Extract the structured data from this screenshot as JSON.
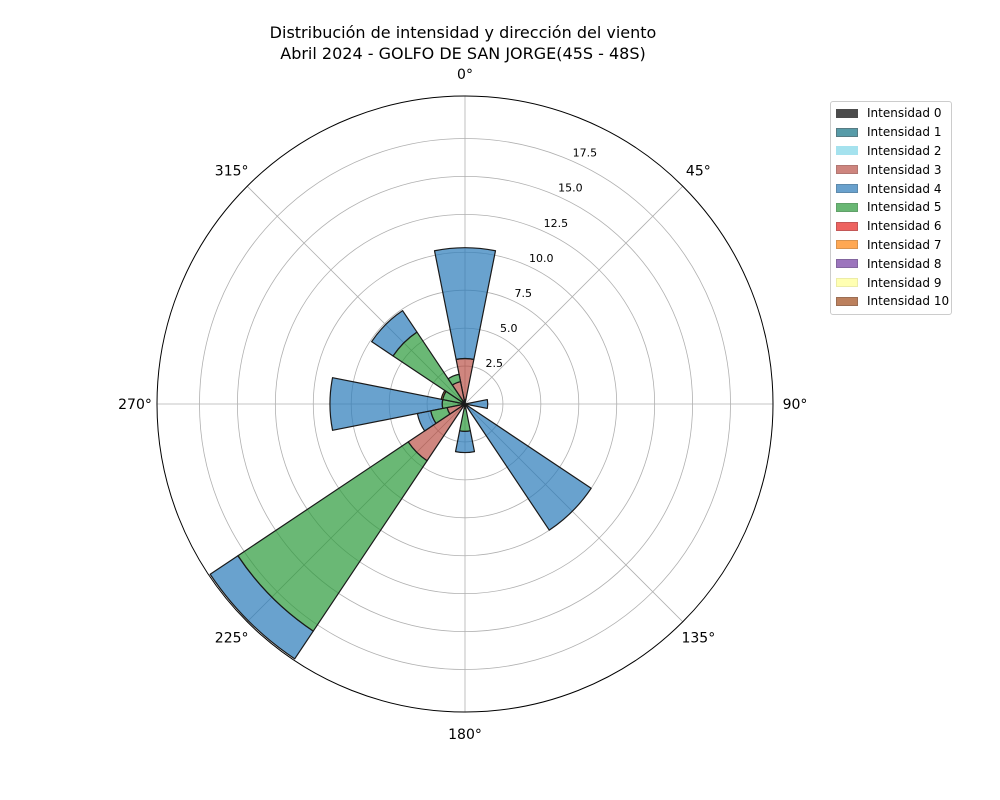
{
  "chart_data": {
    "type": "polar-bar",
    "title": "Distribución de intensidad y dirección del viento",
    "subtitle": "Abril 2024 - GOLFO DE SAN JORGE(45S - 48S)",
    "direction_labels": [
      "0°",
      "45°",
      "90°",
      "135°",
      "180°",
      "225°",
      "270°",
      "315°"
    ],
    "direction_label_angles": [
      0,
      45,
      90,
      135,
      180,
      225,
      270,
      315
    ],
    "radial_ticks": [
      2.5,
      5.0,
      7.5,
      10.0,
      12.5,
      15.0,
      17.5
    ],
    "radial_tick_labels": [
      "2.5",
      "5.0",
      "7.5",
      "10.0",
      "12.5",
      "15.0",
      "17.5"
    ],
    "radial_max": 20.3,
    "sector_width_deg": 22.5,
    "stacked": true,
    "grid": true,
    "legend_position": "upper right, outside plot",
    "series": [
      {
        "name": "Intensidad 0",
        "color": "#000000",
        "values": [
          {
            "direction": 0,
            "r0": 0,
            "r1": 0.3
          }
        ]
      },
      {
        "name": "Intensidad 1",
        "color": "#1f7a8c",
        "values": []
      },
      {
        "name": "Intensidad 2",
        "color": "#7fd6e8",
        "values": []
      },
      {
        "name": "Intensidad 3",
        "color": "#b5453a",
        "values": [
          {
            "direction": 0,
            "r0": 0.3,
            "r1": 3.0
          },
          {
            "direction": 337.5,
            "r0": 0,
            "r1": 1.5
          },
          {
            "direction": 225,
            "r0": 0,
            "r1": 4.5
          },
          {
            "direction": 247.5,
            "r0": 0,
            "r1": 1.2
          },
          {
            "direction": 180,
            "r0": 0,
            "r1": 0.3
          }
        ]
      },
      {
        "name": "Intensidad 4",
        "color": "#2a7ab9",
        "values": [
          {
            "direction": 0,
            "r0": 3.0,
            "r1": 10.3
          },
          {
            "direction": 90,
            "r0": 0,
            "r1": 1.5
          },
          {
            "direction": 135,
            "r0": 0,
            "r1": 10.0
          },
          {
            "direction": 180,
            "r0": 1.8,
            "r1": 3.2
          },
          {
            "direction": 225,
            "r0": 18.0,
            "r1": 20.2
          },
          {
            "direction": 247.5,
            "r0": 2.3,
            "r1": 3.2
          },
          {
            "direction": 270,
            "r0": 1.5,
            "r1": 8.9
          },
          {
            "direction": 315,
            "r0": 5.7,
            "r1": 7.4
          }
        ]
      },
      {
        "name": "Intensidad 5",
        "color": "#2b9a3a",
        "values": [
          {
            "direction": 180,
            "r0": 0.3,
            "r1": 1.8
          },
          {
            "direction": 225,
            "r0": 4.5,
            "r1": 18.0
          },
          {
            "direction": 247.5,
            "r0": 1.2,
            "r1": 2.3
          },
          {
            "direction": 270,
            "r0": 0,
            "r1": 1.5
          },
          {
            "direction": 292.5,
            "r0": 0,
            "r1": 1.5
          },
          {
            "direction": 315,
            "r0": 0,
            "r1": 5.7
          },
          {
            "direction": 337.5,
            "r0": 1.5,
            "r1": 2.0
          }
        ]
      },
      {
        "name": "Intensidad 6",
        "color": "#e8302c",
        "values": []
      },
      {
        "name": "Intensidad 7",
        "color": "#ff8b1c",
        "values": [
          {
            "direction": 292.5,
            "r0": 1.5,
            "r1": 1.6
          }
        ]
      },
      {
        "name": "Intensidad 8",
        "color": "#7b48a8",
        "values": []
      },
      {
        "name": "Intensidad 9",
        "color": "#ffff99",
        "values": []
      },
      {
        "name": "Intensidad 10",
        "color": "#a65628",
        "values": []
      }
    ],
    "legend_swatches": [
      {
        "fill": "#000000",
        "opacity": 0.7,
        "stroke": "#000000"
      },
      {
        "fill": "#1f7a8c",
        "opacity": 0.75,
        "stroke": "#1f4f5a"
      },
      {
        "fill": "#7fd6e8",
        "opacity": 0.7,
        "stroke": "#7fd6e8"
      },
      {
        "fill": "#b5453a",
        "opacity": 0.65,
        "stroke": "#8a3028"
      },
      {
        "fill": "#2a7ab9",
        "opacity": 0.7,
        "stroke": "#1b5a8a"
      },
      {
        "fill": "#2b9a3a",
        "opacity": 0.7,
        "stroke": "#1f7a2a"
      },
      {
        "fill": "#e8302c",
        "opacity": 0.75,
        "stroke": "#b02020"
      },
      {
        "fill": "#ff8b1c",
        "opacity": 0.75,
        "stroke": "#cc6f16"
      },
      {
        "fill": "#7b48a8",
        "opacity": 0.75,
        "stroke": "#5a3480"
      },
      {
        "fill": "#ffff99",
        "opacity": 0.75,
        "stroke": "#e6e68a"
      },
      {
        "fill": "#a65628",
        "opacity": 0.75,
        "stroke": "#7a3e1c"
      }
    ]
  }
}
